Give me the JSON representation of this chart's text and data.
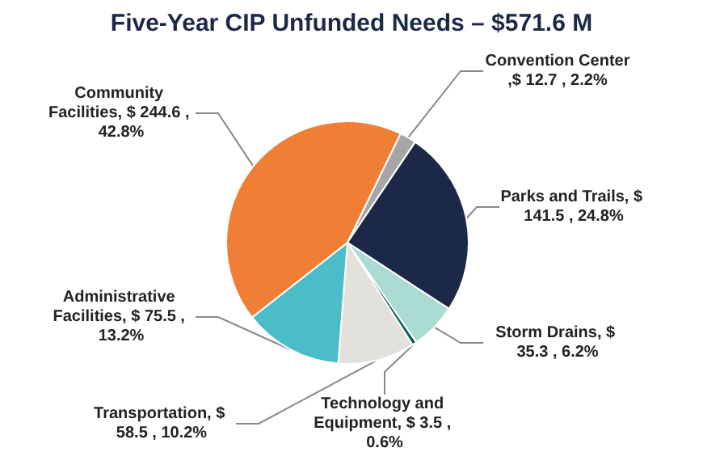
{
  "chart_data": {
    "type": "pie",
    "title": "Five-Year CIP Unfunded Needs – $571.6 M",
    "categories": [
      "Convention Center",
      "Parks and Trails",
      "Storm Drains",
      "Technology and Equipment",
      "Transportation",
      "Administrative Facilities",
      "Community Facilities"
    ],
    "values": [
      12.7,
      141.5,
      35.3,
      3.5,
      58.5,
      75.5,
      244.6
    ],
    "value_labels": [
      ",$ 12.7 , 2.2%",
      ", $ 141.5 , 24.8%",
      ", $ 35.3 , 6.2%",
      ", $ 3.5 , 0.6%",
      ", $ 58.5 , 10.2%",
      ", $ 75.5 , 13.2%",
      ", $ 244.6 , 42.8%"
    ],
    "colors": [
      "#a6a6a6",
      "#1c2848",
      "#a9dbd3",
      "#0f5e5a",
      "#e3e1dc",
      "#4bbdc8",
      "#ee7f35"
    ],
    "legend": false
  }
}
